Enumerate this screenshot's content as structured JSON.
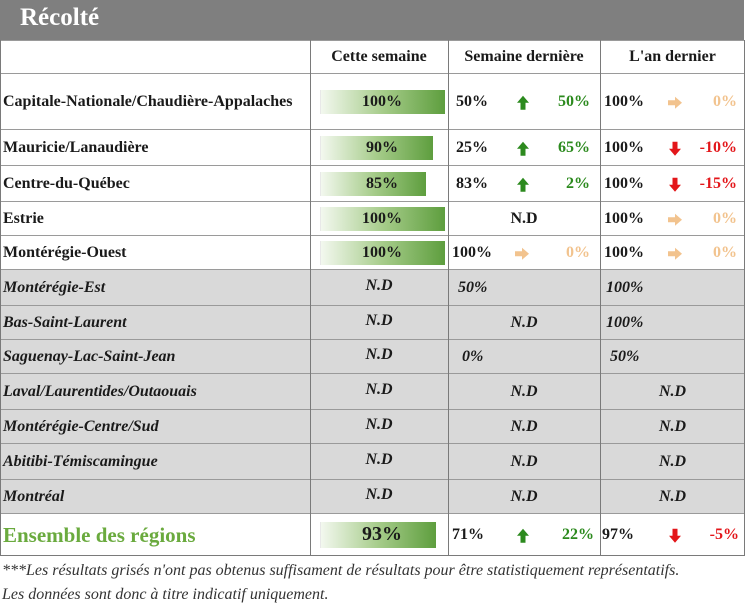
{
  "title": "Récolté",
  "headers": [
    "Cette semaine",
    "Semaine dernière",
    "L'an dernier"
  ],
  "rows": [
    {
      "region": "Capitale-Nationale/Chaudière-Appalaches",
      "cette": "100%",
      "cette_pct": 100,
      "sd_val": "50%",
      "sd_arrow": "up",
      "sd_delta": "50%",
      "ad_val": "100%",
      "ad_arrow": "right",
      "ad_delta": "0%"
    },
    {
      "region": "Mauricie/Lanaudière",
      "cette": "90%",
      "cette_pct": 90,
      "sd_val": "25%",
      "sd_arrow": "up",
      "sd_delta": "65%",
      "ad_val": "100%",
      "ad_arrow": "down",
      "ad_delta": "-10%"
    },
    {
      "region": "Centre-du-Québec",
      "cette": "85%",
      "cette_pct": 85,
      "sd_val": "83%",
      "sd_arrow": "up",
      "sd_delta": "2%",
      "ad_val": "100%",
      "ad_arrow": "down",
      "ad_delta": "-15%"
    },
    {
      "region": "Estrie",
      "cette": "100%",
      "cette_pct": 100,
      "sd_center": "N.D",
      "ad_val": "100%",
      "ad_arrow": "right",
      "ad_delta": "0%"
    },
    {
      "region": "Montérégie-Ouest",
      "cette": "100%",
      "cette_pct": 100,
      "sd_val": "100%",
      "sd_arrow": "right",
      "sd_delta": "0%",
      "ad_val": "100%",
      "ad_arrow": "right",
      "ad_delta": "0%"
    }
  ],
  "gray_rows": [
    {
      "region": "Montérégie-Est",
      "cette": "N.D",
      "sd": "50%",
      "sd_align": "left",
      "ad": "100%",
      "ad_align": "left"
    },
    {
      "region": "Bas-Saint-Laurent",
      "cette": "N.D",
      "sd": "N.D",
      "sd_align": "center",
      "ad": "100%",
      "ad_align": "left"
    },
    {
      "region": "Saguenay-Lac-Saint-Jean",
      "cette": "N.D",
      "sd": "0%",
      "sd_align": "left",
      "ad": "50%",
      "ad_align": "left"
    },
    {
      "region": "Laval/Laurentides/Outaouais",
      "cette": "N.D",
      "sd": "N.D",
      "sd_align": "center",
      "ad": "N.D",
      "ad_align": "center"
    },
    {
      "region": "Montérégie-Centre/Sud",
      "cette": "N.D",
      "sd": "N.D",
      "sd_align": "center",
      "ad": "N.D",
      "ad_align": "center"
    },
    {
      "region": "Abitibi-Témiscamingue",
      "cette": "N.D",
      "sd": "N.D",
      "sd_align": "center",
      "ad": "N.D",
      "ad_align": "center"
    },
    {
      "region": "Montréal",
      "cette": "N.D",
      "sd": "N.D",
      "sd_align": "center",
      "ad": "N.D",
      "ad_align": "center"
    }
  ],
  "total": {
    "region": "Ensemble des régions",
    "cette": "93%",
    "cette_pct": 93,
    "sd_val": "71%",
    "sd_arrow": "up",
    "sd_delta": "22%",
    "ad_val": "97%",
    "ad_arrow": "down",
    "ad_delta": "-5%"
  },
  "colors": {
    "up": "#2c8a1e",
    "down": "#e3161a",
    "flat": "#f2c38e",
    "total_label": "#6aaa3e",
    "gray_row": "#d9d9d9"
  },
  "footnote": [
    "***Les résultats grisés n'ont pas obtenus suffisament de résultats pour être statistiquement représentatifs.",
    "Les données sont donc à titre indicatif uniquement."
  ]
}
